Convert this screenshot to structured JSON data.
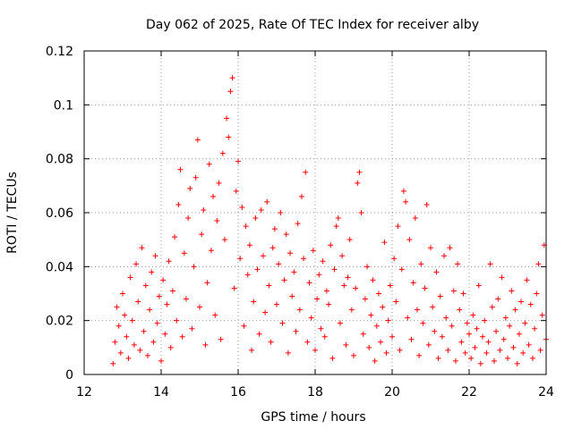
{
  "chart_data": {
    "type": "scatter",
    "title": "Day 062 of 2025, Rate Of TEC Index for receiver alby",
    "xlabel": "GPS time / hours",
    "ylabel": "ROTI / TECUs",
    "xlim": [
      12,
      24
    ],
    "ylim": [
      0,
      0.12
    ],
    "xticks": [
      12,
      14,
      16,
      18,
      20,
      22,
      24
    ],
    "xtick_labels": [
      "12",
      "14",
      "16",
      "18",
      "20",
      "22",
      "24"
    ],
    "yticks": [
      0,
      0.02,
      0.04,
      0.06,
      0.08,
      0.1,
      0.12
    ],
    "ytick_labels": [
      "0",
      "0.02",
      "0.04",
      "0.06",
      "0.08",
      "0.1",
      "0.12"
    ],
    "grid": true,
    "marker": "plus",
    "color": "#ff0000",
    "series": [
      {
        "name": "ROTI",
        "points": [
          [
            12.75,
            0.004
          ],
          [
            12.8,
            0.012
          ],
          [
            12.85,
            0.025
          ],
          [
            12.9,
            0.018
          ],
          [
            12.95,
            0.008
          ],
          [
            13.0,
            0.03
          ],
          [
            13.05,
            0.022
          ],
          [
            13.1,
            0.014
          ],
          [
            13.15,
            0.006
          ],
          [
            13.2,
            0.036
          ],
          [
            13.25,
            0.02
          ],
          [
            13.3,
            0.011
          ],
          [
            13.35,
            0.041
          ],
          [
            13.4,
            0.027
          ],
          [
            13.45,
            0.009
          ],
          [
            13.5,
            0.047
          ],
          [
            13.55,
            0.016
          ],
          [
            13.6,
            0.033
          ],
          [
            13.65,
            0.007
          ],
          [
            13.7,
            0.024
          ],
          [
            13.75,
            0.038
          ],
          [
            13.8,
            0.012
          ],
          [
            13.85,
            0.044
          ],
          [
            13.9,
            0.019
          ],
          [
            13.95,
            0.029
          ],
          [
            14.0,
            0.005
          ],
          [
            14.05,
            0.035
          ],
          [
            14.1,
            0.015
          ],
          [
            14.15,
            0.026
          ],
          [
            14.2,
            0.042
          ],
          [
            14.25,
            0.01
          ],
          [
            14.3,
            0.031
          ],
          [
            14.35,
            0.051
          ],
          [
            14.4,
            0.02
          ],
          [
            14.45,
            0.063
          ],
          [
            14.5,
            0.076
          ],
          [
            14.55,
            0.014
          ],
          [
            14.6,
            0.045
          ],
          [
            14.65,
            0.028
          ],
          [
            14.7,
            0.058
          ],
          [
            14.75,
            0.069
          ],
          [
            14.8,
            0.017
          ],
          [
            14.85,
            0.04
          ],
          [
            14.9,
            0.073
          ],
          [
            14.95,
            0.087
          ],
          [
            15.0,
            0.025
          ],
          [
            15.05,
            0.052
          ],
          [
            15.1,
            0.061
          ],
          [
            15.15,
            0.011
          ],
          [
            15.2,
            0.034
          ],
          [
            15.25,
            0.078
          ],
          [
            15.3,
            0.046
          ],
          [
            15.35,
            0.066
          ],
          [
            15.4,
            0.022
          ],
          [
            15.45,
            0.057
          ],
          [
            15.5,
            0.071
          ],
          [
            15.55,
            0.013
          ],
          [
            15.6,
            0.082
          ],
          [
            15.65,
            0.05
          ],
          [
            15.7,
            0.095
          ],
          [
            15.75,
            0.088
          ],
          [
            15.8,
            0.105
          ],
          [
            15.85,
            0.11
          ],
          [
            15.9,
            0.032
          ],
          [
            15.95,
            0.068
          ],
          [
            16.0,
            0.079
          ],
          [
            16.05,
            0.043
          ],
          [
            16.1,
            0.062
          ],
          [
            16.15,
            0.018
          ],
          [
            16.2,
            0.055
          ],
          [
            16.25,
            0.037
          ],
          [
            16.3,
            0.048
          ],
          [
            16.35,
            0.009
          ],
          [
            16.4,
            0.027
          ],
          [
            16.45,
            0.058
          ],
          [
            16.5,
            0.039
          ],
          [
            16.55,
            0.015
          ],
          [
            16.6,
            0.061
          ],
          [
            16.65,
            0.044
          ],
          [
            16.7,
            0.023
          ],
          [
            16.75,
            0.064
          ],
          [
            16.8,
            0.033
          ],
          [
            16.85,
            0.012
          ],
          [
            16.9,
            0.047
          ],
          [
            16.95,
            0.054
          ],
          [
            17.0,
            0.026
          ],
          [
            17.05,
            0.041
          ],
          [
            17.1,
            0.06
          ],
          [
            17.15,
            0.019
          ],
          [
            17.2,
            0.035
          ],
          [
            17.25,
            0.052
          ],
          [
            17.3,
            0.008
          ],
          [
            17.35,
            0.045
          ],
          [
            17.4,
            0.029
          ],
          [
            17.45,
            0.038
          ],
          [
            17.5,
            0.016
          ],
          [
            17.55,
            0.056
          ],
          [
            17.6,
            0.024
          ],
          [
            17.65,
            0.066
          ],
          [
            17.7,
            0.043
          ],
          [
            17.75,
            0.075
          ],
          [
            17.8,
            0.012
          ],
          [
            17.85,
            0.034
          ],
          [
            17.9,
            0.021
          ],
          [
            17.95,
            0.046
          ],
          [
            18.0,
            0.009
          ],
          [
            18.05,
            0.028
          ],
          [
            18.1,
            0.037
          ],
          [
            18.15,
            0.017
          ],
          [
            18.2,
            0.042
          ],
          [
            18.25,
            0.014
          ],
          [
            18.3,
            0.031
          ],
          [
            18.35,
            0.026
          ],
          [
            18.4,
            0.048
          ],
          [
            18.45,
            0.006
          ],
          [
            18.5,
            0.039
          ],
          [
            18.55,
            0.055
          ],
          [
            18.6,
            0.058
          ],
          [
            18.65,
            0.019
          ],
          [
            18.7,
            0.044
          ],
          [
            18.75,
            0.033
          ],
          [
            18.8,
            0.011
          ],
          [
            18.85,
            0.036
          ],
          [
            18.9,
            0.05
          ],
          [
            18.95,
            0.024
          ],
          [
            19.0,
            0.007
          ],
          [
            19.05,
            0.032
          ],
          [
            19.1,
            0.071
          ],
          [
            19.15,
            0.075
          ],
          [
            19.2,
            0.06
          ],
          [
            19.25,
            0.015
          ],
          [
            19.3,
            0.028
          ],
          [
            19.35,
            0.04
          ],
          [
            19.4,
            0.01
          ],
          [
            19.45,
            0.022
          ],
          [
            19.5,
            0.035
          ],
          [
            19.55,
            0.005
          ],
          [
            19.6,
            0.018
          ],
          [
            19.65,
            0.03
          ],
          [
            19.7,
            0.012
          ],
          [
            19.75,
            0.025
          ],
          [
            19.8,
            0.049
          ],
          [
            19.85,
            0.008
          ],
          [
            19.9,
            0.02
          ],
          [
            19.95,
            0.033
          ],
          [
            20.0,
            0.014
          ],
          [
            20.05,
            0.043
          ],
          [
            20.1,
            0.027
          ],
          [
            20.15,
            0.055
          ],
          [
            20.2,
            0.009
          ],
          [
            20.25,
            0.039
          ],
          [
            20.3,
            0.068
          ],
          [
            20.35,
            0.064
          ],
          [
            20.4,
            0.021
          ],
          [
            20.45,
            0.05
          ],
          [
            20.5,
            0.013
          ],
          [
            20.55,
            0.034
          ],
          [
            20.6,
            0.058
          ],
          [
            20.65,
            0.024
          ],
          [
            20.7,
            0.007
          ],
          [
            20.75,
            0.041
          ],
          [
            20.8,
            0.019
          ],
          [
            20.85,
            0.032
          ],
          [
            20.9,
            0.063
          ],
          [
            20.95,
            0.011
          ],
          [
            21.0,
            0.047
          ],
          [
            21.05,
            0.025
          ],
          [
            21.1,
            0.016
          ],
          [
            21.15,
            0.038
          ],
          [
            21.2,
            0.006
          ],
          [
            21.25,
            0.029
          ],
          [
            21.3,
            0.014
          ],
          [
            21.35,
            0.044
          ],
          [
            21.4,
            0.021
          ],
          [
            21.45,
            0.009
          ],
          [
            21.5,
            0.047
          ],
          [
            21.55,
            0.018
          ],
          [
            21.6,
            0.031
          ],
          [
            21.65,
            0.005
          ],
          [
            21.7,
            0.041
          ],
          [
            21.75,
            0.024
          ],
          [
            21.8,
            0.012
          ],
          [
            21.85,
            0.03
          ],
          [
            21.9,
            0.008
          ],
          [
            21.95,
            0.019
          ],
          [
            22.0,
            0.015
          ],
          [
            22.05,
            0.006
          ],
          [
            22.1,
            0.022
          ],
          [
            22.15,
            0.01
          ],
          [
            22.2,
            0.017
          ],
          [
            22.25,
            0.033
          ],
          [
            22.3,
            0.004
          ],
          [
            22.35,
            0.014
          ],
          [
            22.4,
            0.02
          ],
          [
            22.45,
            0.008
          ],
          [
            22.5,
            0.012
          ],
          [
            22.55,
            0.041
          ],
          [
            22.6,
            0.025
          ],
          [
            22.65,
            0.005
          ],
          [
            22.7,
            0.016
          ],
          [
            22.75,
            0.028
          ],
          [
            22.8,
            0.009
          ],
          [
            22.85,
            0.036
          ],
          [
            22.9,
            0.013
          ],
          [
            22.95,
            0.021
          ],
          [
            23.0,
            0.006
          ],
          [
            23.05,
            0.018
          ],
          [
            23.1,
            0.031
          ],
          [
            23.15,
            0.01
          ],
          [
            23.2,
            0.024
          ],
          [
            23.25,
            0.004
          ],
          [
            23.3,
            0.015
          ],
          [
            23.35,
            0.027
          ],
          [
            23.4,
            0.008
          ],
          [
            23.45,
            0.019
          ],
          [
            23.5,
            0.035
          ],
          [
            23.55,
            0.011
          ],
          [
            23.6,
            0.026
          ],
          [
            23.65,
            0.006
          ],
          [
            23.7,
            0.017
          ],
          [
            23.75,
            0.03
          ],
          [
            23.8,
            0.041
          ],
          [
            23.85,
            0.009
          ],
          [
            23.9,
            0.022
          ],
          [
            23.95,
            0.048
          ],
          [
            24.0,
            0.013
          ]
        ]
      }
    ]
  }
}
